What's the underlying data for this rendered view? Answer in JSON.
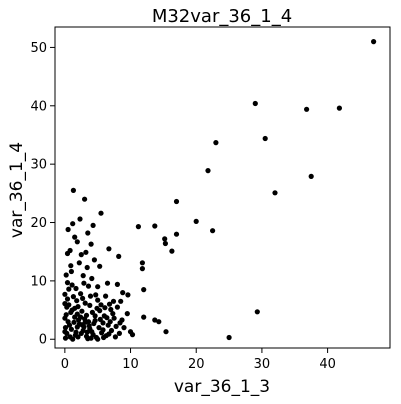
{
  "chart_data": {
    "type": "scatter",
    "title": "M32var_36_1_4",
    "xlabel": "var_36_1_3",
    "ylabel": "var_36_1_4",
    "xlim": [
      -1.5,
      49.5
    ],
    "ylim": [
      -1.5,
      53.5
    ],
    "xticks": [
      0,
      10,
      20,
      30,
      40
    ],
    "yticks": [
      0,
      10,
      20,
      30,
      40,
      50
    ],
    "grid": false,
    "marker_color": "#000000",
    "series": [
      {
        "points": [
          [
            47.0,
            51.0
          ],
          [
            29.0,
            40.4
          ],
          [
            36.8,
            39.4
          ],
          [
            41.8,
            39.6
          ],
          [
            30.5,
            34.4
          ],
          [
            23.0,
            33.7
          ],
          [
            21.8,
            28.9
          ],
          [
            37.5,
            27.9
          ],
          [
            32.0,
            25.1
          ],
          [
            17.0,
            23.6
          ],
          [
            20.0,
            20.2
          ],
          [
            22.5,
            18.6
          ],
          [
            17.0,
            18.0
          ],
          [
            15.2,
            17.2
          ],
          [
            15.3,
            16.4
          ],
          [
            16.3,
            15.1
          ],
          [
            11.8,
            13.1
          ],
          [
            11.8,
            12.1
          ],
          [
            13.7,
            19.4
          ],
          [
            11.2,
            19.3
          ],
          [
            12.0,
            8.5
          ],
          [
            8.8,
            8.0
          ],
          [
            8.5,
            6.5
          ],
          [
            6.7,
            15.5
          ],
          [
            8.2,
            14.2
          ],
          [
            12.0,
            3.8
          ],
          [
            13.7,
            3.3
          ],
          [
            14.3,
            3.0
          ],
          [
            15.4,
            1.3
          ],
          [
            10.3,
            0.8
          ],
          [
            25.0,
            0.3
          ],
          [
            29.3,
            4.7
          ],
          [
            1.3,
            25.5
          ],
          [
            3.0,
            24.0
          ],
          [
            5.5,
            21.6
          ],
          [
            2.3,
            20.6
          ],
          [
            1.2,
            19.8
          ],
          [
            4.3,
            19.5
          ],
          [
            3.5,
            18.2
          ],
          [
            1.5,
            17.5
          ],
          [
            0.8,
            15.2
          ],
          [
            4.0,
            16.3
          ],
          [
            2.5,
            14.5
          ],
          [
            0.4,
            14.7
          ],
          [
            4.5,
            13.6
          ],
          [
            2.2,
            13.1
          ],
          [
            5.3,
            12.5
          ],
          [
            3.4,
            12.3
          ],
          [
            1.0,
            11.6
          ],
          [
            0.2,
            11.0
          ],
          [
            2.8,
            10.9
          ],
          [
            6.5,
            9.6
          ],
          [
            5.0,
            9.0
          ],
          [
            3.6,
            9.1
          ],
          [
            1.7,
            8.7
          ],
          [
            0.6,
            8.6
          ],
          [
            2.4,
            7.8
          ],
          [
            4.7,
            7.6
          ],
          [
            6.2,
            7.4
          ],
          [
            7.4,
            6.5
          ],
          [
            8.0,
            5.5
          ],
          [
            0.4,
            6.9
          ],
          [
            1.8,
            6.6
          ],
          [
            3.1,
            6.2
          ],
          [
            5.5,
            5.9
          ],
          [
            7.0,
            5.1
          ],
          [
            0.3,
            5.5
          ],
          [
            1.1,
            5.0
          ],
          [
            2.6,
            4.8
          ],
          [
            4.2,
            4.6
          ],
          [
            6.0,
            4.0
          ],
          [
            7.5,
            3.6
          ],
          [
            0.2,
            4.2
          ],
          [
            1.5,
            3.8
          ],
          [
            3.0,
            3.5
          ],
          [
            4.6,
            3.2
          ],
          [
            5.8,
            2.8
          ],
          [
            0.5,
            3.0
          ],
          [
            2.2,
            2.6
          ],
          [
            3.7,
            2.3
          ],
          [
            5.2,
            2.0
          ],
          [
            6.6,
            2.4
          ],
          [
            0.1,
            2.0
          ],
          [
            1.0,
            1.7
          ],
          [
            2.8,
            1.5
          ],
          [
            4.1,
            1.3
          ],
          [
            5.6,
            1.1
          ],
          [
            7.1,
            1.5
          ],
          [
            0.3,
            1.0
          ],
          [
            1.6,
            0.7
          ],
          [
            3.3,
            0.5
          ],
          [
            4.8,
            0.3
          ],
          [
            6.3,
            0.6
          ],
          [
            0.1,
            0.2
          ],
          [
            1.2,
            0.0
          ],
          [
            2.0,
            0.4
          ],
          [
            3.5,
            0.1
          ],
          [
            5.0,
            0.0
          ],
          [
            8.3,
            1.0
          ],
          [
            9.0,
            2.0
          ],
          [
            0.7,
            2.4
          ],
          [
            1.4,
            2.9
          ],
          [
            2.1,
            3.3
          ],
          [
            2.9,
            2.1
          ],
          [
            3.8,
            1.8
          ],
          [
            4.4,
            2.7
          ],
          [
            5.4,
            3.4
          ],
          [
            6.9,
            3.0
          ],
          [
            7.8,
            2.2
          ],
          [
            8.7,
            3.3
          ],
          [
            0.9,
            4.6
          ],
          [
            1.9,
            4.3
          ],
          [
            3.3,
            4.1
          ],
          [
            4.9,
            5.3
          ],
          [
            6.1,
            5.4
          ],
          [
            0.6,
            5.9
          ],
          [
            2.0,
            5.6
          ],
          [
            3.8,
            5.8
          ],
          [
            5.0,
            6.7
          ],
          [
            6.8,
            6.0
          ],
          [
            1.3,
            7.3
          ],
          [
            2.7,
            7.0
          ],
          [
            3.9,
            7.4
          ],
          [
            0.0,
            1.3
          ],
          [
            0.0,
            3.6
          ],
          [
            0.0,
            6.1
          ],
          [
            0.0,
            7.7
          ],
          [
            1.7,
            1.2
          ],
          [
            2.5,
            1.0
          ],
          [
            3.1,
            2.9
          ],
          [
            4.3,
            0.8
          ],
          [
            5.8,
            1.6
          ],
          [
            6.4,
            3.7
          ],
          [
            7.3,
            4.4
          ],
          [
            9.5,
            4.4
          ],
          [
            10.0,
            1.3
          ],
          [
            0.4,
            9.7
          ],
          [
            1.1,
            9.3
          ],
          [
            2.9,
            9.6
          ],
          [
            4.1,
            10.4
          ],
          [
            0.9,
            12.6
          ],
          [
            3.2,
            14.9
          ],
          [
            1.9,
            16.7
          ],
          [
            0.5,
            18.8
          ],
          [
            8.0,
            9.4
          ],
          [
            9.6,
            7.6
          ],
          [
            8.4,
            2.8
          ],
          [
            7.7,
            0.4
          ],
          [
            6.7,
            0.9
          ],
          [
            2.4,
            3.8
          ],
          [
            1.5,
            5.3
          ],
          [
            3.6,
            3.0
          ],
          [
            4.6,
            4.0
          ],
          [
            5.3,
            4.9
          ],
          [
            0.8,
            0.4
          ],
          [
            1.9,
            2.1
          ],
          [
            2.6,
            2.5
          ],
          [
            3.4,
            1.2
          ],
          [
            4.0,
            0.2
          ],
          [
            5.9,
            0.3
          ]
        ]
      }
    ]
  }
}
